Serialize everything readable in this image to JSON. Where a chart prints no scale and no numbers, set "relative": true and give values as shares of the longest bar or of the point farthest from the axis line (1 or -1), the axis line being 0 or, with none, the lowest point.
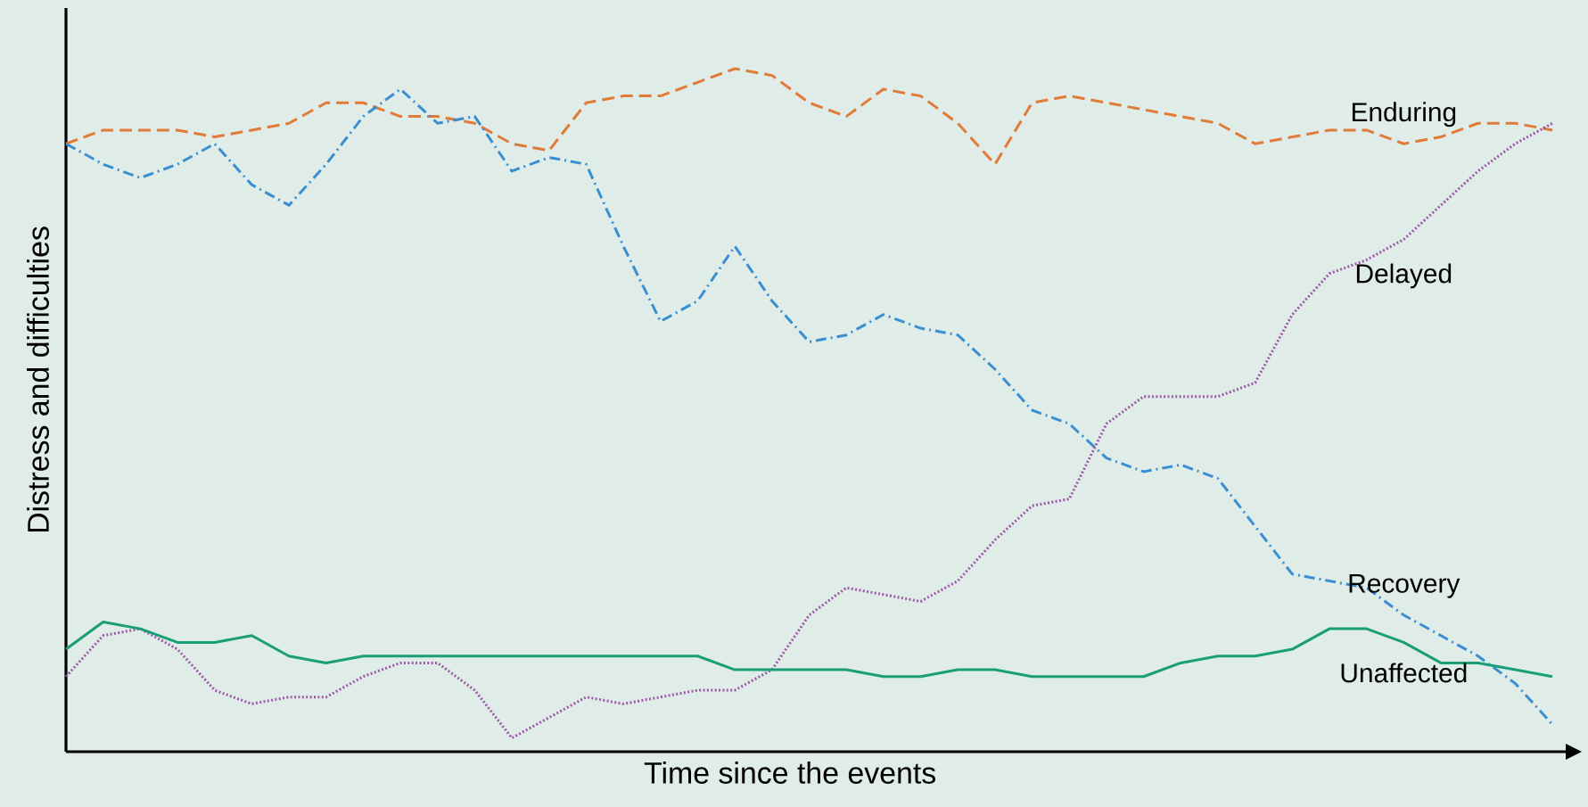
{
  "chart_data": {
    "type": "line",
    "relative": true,
    "xlabel": "Time since the events",
    "ylabel": "Distress and difficulties",
    "categories": [
      null,
      null,
      null,
      null,
      null,
      null,
      null,
      null,
      null,
      null,
      null,
      null,
      null,
      null,
      null,
      null,
      null,
      null,
      null,
      null,
      null,
      null,
      null,
      null,
      null,
      null,
      null,
      null,
      null,
      null,
      null,
      null,
      null,
      null,
      null,
      null,
      null,
      null,
      null,
      null,
      null
    ],
    "series": [
      {
        "name": "Enduring",
        "color": "#e07b39",
        "line_style": "dashed",
        "values": [
          0.89,
          0.91,
          0.91,
          0.91,
          0.9,
          0.91,
          0.92,
          0.95,
          0.95,
          0.93,
          0.93,
          0.92,
          0.89,
          0.88,
          0.95,
          0.96,
          0.96,
          0.98,
          1,
          0.99,
          0.95,
          0.93,
          0.97,
          0.96,
          0.92,
          0.86,
          0.95,
          0.96,
          0.95,
          0.94,
          0.93,
          0.92,
          0.89,
          0.9,
          0.91,
          0.91,
          0.89,
          0.9,
          0.92,
          0.92,
          0.91
        ]
      },
      {
        "name": "Recovery",
        "color": "#3a8fd0",
        "line_style": "dashdot",
        "values": [
          0.89,
          0.86,
          0.84,
          0.86,
          0.89,
          0.83,
          0.8,
          0.86,
          0.93,
          0.97,
          0.92,
          0.93,
          0.85,
          0.87,
          0.86,
          0.74,
          0.63,
          0.66,
          0.74,
          0.66,
          0.6,
          0.61,
          0.64,
          0.62,
          0.61,
          0.56,
          0.5,
          0.48,
          0.43,
          0.41,
          0.42,
          0.4,
          0.33,
          0.26,
          0.25,
          0.24,
          0.2,
          0.17,
          0.14,
          0.1,
          0.04
        ]
      },
      {
        "name": "Delayed",
        "color": "#9b59a6",
        "line_style": "dotted",
        "values": [
          0.11,
          0.17,
          0.18,
          0.15,
          0.09,
          0.07,
          0.08,
          0.08,
          0.11,
          0.13,
          0.13,
          0.09,
          0.02,
          0.05,
          0.08,
          0.07,
          0.08,
          0.09,
          0.09,
          0.12,
          0.2,
          0.24,
          0.23,
          0.22,
          0.25,
          0.31,
          0.36,
          0.37,
          0.48,
          0.52,
          0.52,
          0.52,
          0.54,
          0.64,
          0.7,
          0.72,
          0.75,
          0.8,
          0.85,
          0.89,
          0.92
        ]
      },
      {
        "name": "Unaffected",
        "color": "#1a9e77",
        "line_style": "solid",
        "values": [
          0.15,
          0.19,
          0.18,
          0.16,
          0.16,
          0.17,
          0.14,
          0.13,
          0.14,
          0.14,
          0.14,
          0.14,
          0.14,
          0.14,
          0.14,
          0.14,
          0.14,
          0.14,
          0.12,
          0.12,
          0.12,
          0.12,
          0.11,
          0.11,
          0.12,
          0.12,
          0.11,
          0.11,
          0.11,
          0.11,
          0.13,
          0.14,
          0.14,
          0.15,
          0.18,
          0.18,
          0.16,
          0.13,
          0.13,
          0.12,
          0.11
        ]
      }
    ]
  }
}
